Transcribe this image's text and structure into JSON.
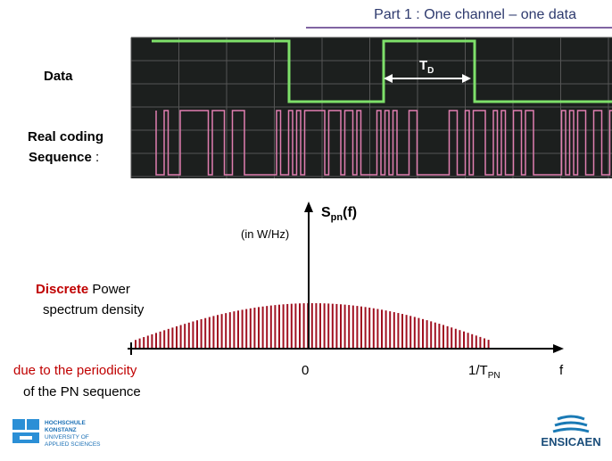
{
  "header": {
    "title": "Part 1 : One channel – one data"
  },
  "scope": {
    "data_label": "Data",
    "coding_label_1": "Real coding",
    "coding_label_2": "Sequence",
    "coding_label_colon": ":",
    "period_symbol": "T",
    "period_subscript": "D"
  },
  "spectrum": {
    "y_symbol": "S",
    "y_subscript": "pn",
    "y_arg": "(f)",
    "y_unit": "(in W/Hz)",
    "desc_red": "Discrete",
    "desc_rest": "Power",
    "desc_line2": "spectrum density",
    "cause_line1": "due to the periodicity",
    "cause_line2": "of the PN sequence",
    "x_zero": "0",
    "x_end_main": "1/T",
    "x_end_sub": "PN",
    "x_axis": "f"
  },
  "logos": {
    "left_1": "HOCHSCHULE",
    "left_2": "KONSTANZ",
    "left_3": "UNIVERSITY OF",
    "left_4": "APPLIED SCIENCES",
    "right": "ENSICAEN"
  }
}
